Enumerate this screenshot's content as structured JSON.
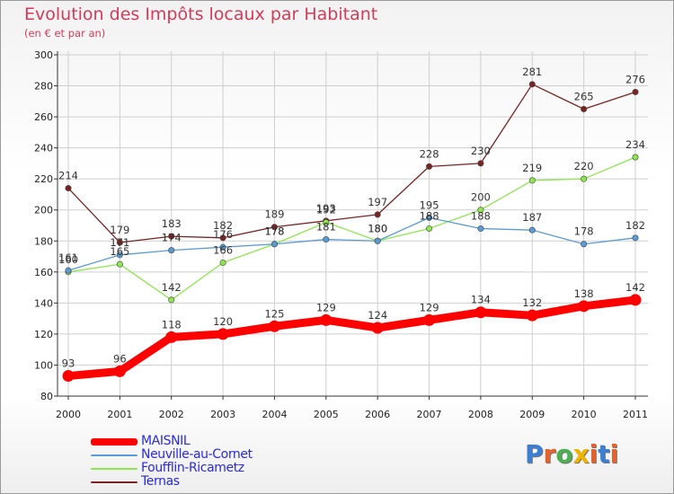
{
  "header": {
    "title": "Evolution des Impôts locaux par Habitant",
    "subtitle": "(en € et par an)"
  },
  "logo": {
    "text": "Proxiti",
    "colors": [
      "#3a7fd5",
      "#e8612c",
      "#4caf50",
      "#f0b400",
      "#e8612c",
      "#3a7fd5",
      "#e8612c"
    ]
  },
  "chart_data": {
    "type": "line",
    "title": "Evolution des Impôts locaux par Habitant",
    "subtitle": "(en € et par an)",
    "xlabel": "",
    "ylabel": "",
    "x": [
      "2000",
      "2001",
      "2002",
      "2003",
      "2004",
      "2005",
      "2006",
      "2007",
      "2008",
      "2009",
      "2010",
      "2011"
    ],
    "ylim": [
      80,
      300
    ],
    "yticks": [
      80,
      100,
      120,
      140,
      160,
      180,
      200,
      220,
      240,
      260,
      280,
      300
    ],
    "grid": true,
    "legend_position": "bottom-left",
    "series": [
      {
        "name": "MAISNIL",
        "color": "#ff0000",
        "values": [
          93,
          96,
          118,
          120,
          125,
          129,
          124,
          129,
          134,
          132,
          138,
          142
        ]
      },
      {
        "name": "Neuville-au-Cornet",
        "color": "#5b9bd5",
        "values": [
          161,
          171,
          174,
          176,
          178,
          181,
          180,
          195,
          188,
          187,
          178,
          182
        ]
      },
      {
        "name": "Foufflin-Ricametz",
        "color": "#8ee64f",
        "values": [
          160,
          165,
          142,
          166,
          178,
          192,
          180,
          188,
          200,
          219,
          220,
          234
        ]
      },
      {
        "name": "Ternas",
        "color": "#7a2323",
        "values": [
          214,
          179,
          183,
          182,
          189,
          193,
          197,
          228,
          230,
          281,
          265,
          276
        ]
      }
    ]
  }
}
